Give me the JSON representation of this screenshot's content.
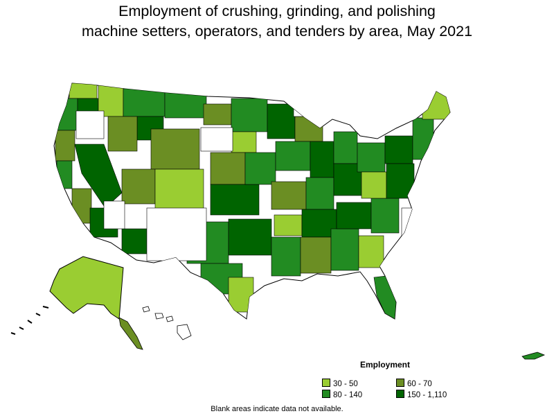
{
  "title_line1": "Employment of crushing, grinding, and polishing",
  "title_line2": "machine setters, operators, and tenders by area, May 2021",
  "legend": {
    "title": "Employment",
    "items": [
      {
        "label": "30 - 50",
        "color": "#9acd32"
      },
      {
        "label": "60 - 70",
        "color": "#6b8e23"
      },
      {
        "label": "80 - 140",
        "color": "#228b22"
      },
      {
        "label": "150 - 1,110",
        "color": "#006400"
      }
    ]
  },
  "footnote": "Blank areas indicate data not available.",
  "colors": {
    "outline": "#000000",
    "no_data": "#ffffff"
  }
}
